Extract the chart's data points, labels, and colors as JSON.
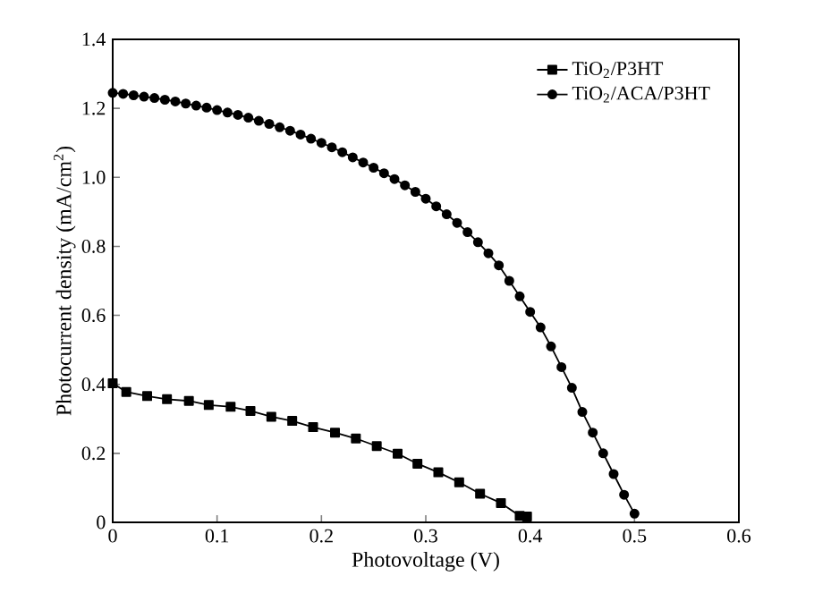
{
  "chart_data": {
    "type": "line",
    "xlabel": "Photovoltage (V)",
    "ylabel": "Photocurrent density (mA/cm$^{2}$)",
    "xlim": [
      0,
      0.6
    ],
    "ylim": [
      0,
      1.4
    ],
    "xticks": [
      0,
      0.1,
      0.2,
      0.3,
      0.4,
      0.5,
      0.6
    ],
    "yticks": [
      0,
      0.2,
      0.4,
      0.6,
      0.8,
      {
        "value": 1.0,
        "label": "1.0"
      },
      1.2,
      1.4
    ],
    "legend": "top right",
    "grid": false,
    "line_style": "solid",
    "series": [
      {
        "name": "TiO$_{2}$/P3HT",
        "color": "#000000",
        "marker": "square",
        "x": [
          0,
          0.013,
          0.033,
          0.052,
          0.073,
          0.092,
          0.113,
          0.132,
          0.152,
          0.172,
          0.192,
          0.213,
          0.233,
          0.253,
          0.273,
          0.292,
          0.312,
          0.332,
          0.352,
          0.372,
          0.39,
          0.397
        ],
        "values": [
          0.403,
          0.378,
          0.366,
          0.357,
          0.352,
          0.34,
          0.335,
          0.323,
          0.306,
          0.294,
          0.276,
          0.26,
          0.243,
          0.221,
          0.199,
          0.17,
          0.145,
          0.116,
          0.083,
          0.056,
          0.019,
          0.017
        ]
      },
      {
        "name": "TiO$_{2}$/ACA/P3HT",
        "color": "#000000",
        "marker": "circle",
        "x": [
          0,
          0.01,
          0.02,
          0.03,
          0.04,
          0.05,
          0.06,
          0.07,
          0.08,
          0.09,
          0.1,
          0.11,
          0.12,
          0.13,
          0.14,
          0.15,
          0.16,
          0.17,
          0.18,
          0.19,
          0.2,
          0.21,
          0.22,
          0.23,
          0.24,
          0.25,
          0.26,
          0.27,
          0.28,
          0.29,
          0.3,
          0.31,
          0.32,
          0.33,
          0.34,
          0.35,
          0.36,
          0.37,
          0.38,
          0.39,
          0.4,
          0.41,
          0.42,
          0.43,
          0.44,
          0.45,
          0.46,
          0.47,
          0.48,
          0.49,
          0.5
        ],
        "values": [
          1.245,
          1.242,
          1.238,
          1.234,
          1.23,
          1.225,
          1.22,
          1.214,
          1.208,
          1.202,
          1.195,
          1.188,
          1.181,
          1.173,
          1.164,
          1.155,
          1.145,
          1.135,
          1.124,
          1.112,
          1.1,
          1.087,
          1.073,
          1.058,
          1.043,
          1.028,
          1.012,
          0.995,
          0.977,
          0.958,
          0.938,
          0.916,
          0.893,
          0.868,
          0.841,
          0.812,
          0.78,
          0.745,
          0.7,
          0.655,
          0.61,
          0.565,
          0.51,
          0.45,
          0.39,
          0.32,
          0.26,
          0.2,
          0.14,
          0.08,
          0.025
        ]
      }
    ]
  }
}
